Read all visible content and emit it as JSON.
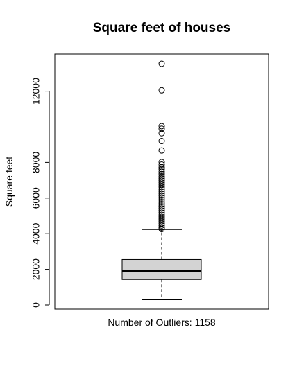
{
  "chart_data": {
    "type": "boxplot",
    "title": "Square feet of houses",
    "xlabel": "Number of Outliers: 1158",
    "ylabel": "Square feet",
    "yticks": [
      0,
      2000,
      4000,
      6000,
      8000,
      12000
    ],
    "ylim": [
      0,
      13540
    ],
    "grid": false,
    "box": {
      "fill": "#d3d3d3",
      "whisker_low": 290,
      "q1": 1430,
      "median": 1910,
      "q3": 2550,
      "whisker_high": 4230
    },
    "outliers": [
      13540,
      12050,
      10040,
      9890,
      9640,
      9200,
      8670,
      8020,
      7880,
      7730,
      7620,
      7480,
      7350,
      7220,
      7100,
      6980,
      6860,
      6740,
      6620,
      6500,
      6380,
      6260,
      6140,
      6020,
      5900,
      5780,
      5660,
      5540,
      5420,
      5300,
      5180,
      5060,
      4940,
      4820,
      4700,
      4580,
      4460,
      4340,
      4260
    ]
  }
}
